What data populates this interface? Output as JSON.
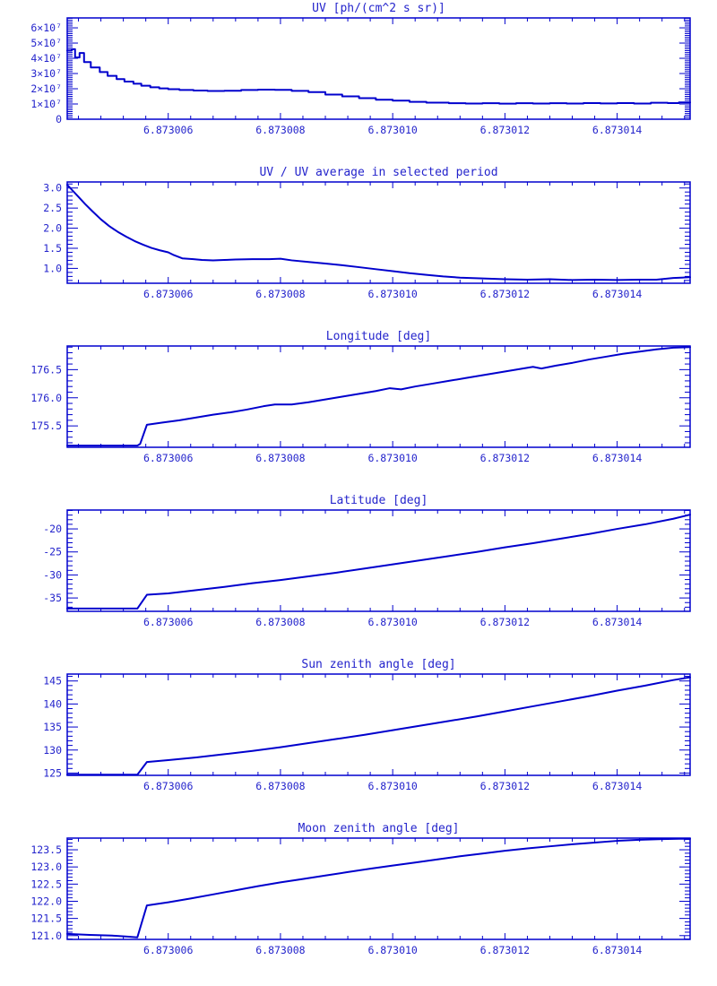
{
  "page": {
    "background": "#ffffff"
  },
  "style": {
    "line_color": "#0000CD",
    "frame_color": "#0000CD",
    "text_color": "#2424CC"
  },
  "chart_data": [
    {
      "type": "line",
      "title": "UV [ph/(cm^2 s sr)]",
      "line_mode": "step",
      "x_note": "point x = (axis label value - 6.873000) in units of 1e-6",
      "x_range": [
        4.2,
        15.3
      ],
      "x_ticks": [
        {
          "v": 6,
          "label": "6.873006"
        },
        {
          "v": 8,
          "label": "6.873008"
        },
        {
          "v": 10,
          "label": "6.873010"
        },
        {
          "v": 12,
          "label": "6.873012"
        },
        {
          "v": 14,
          "label": "6.873014"
        }
      ],
      "x_minor_step": 0.4,
      "y_note": "y values in units of 1e7 ph/(cm^2 s sr)",
      "y_range": [
        0,
        6.65
      ],
      "y_ticks": [
        {
          "v": 0,
          "label": "0"
        },
        {
          "v": 1,
          "label": "1×10⁷"
        },
        {
          "v": 2,
          "label": "2×10⁷"
        },
        {
          "v": 3,
          "label": "3×10⁷"
        },
        {
          "v": 4,
          "label": "4×10⁷"
        },
        {
          "v": 5,
          "label": "5×10⁷"
        },
        {
          "v": 6,
          "label": "6×10⁷"
        }
      ],
      "y_minor_step": 0.125,
      "points": [
        [
          4.2,
          4.5
        ],
        [
          4.28,
          4.6
        ],
        [
          4.34,
          4.05
        ],
        [
          4.42,
          4.35
        ],
        [
          4.5,
          3.75
        ],
        [
          4.62,
          3.4
        ],
        [
          4.78,
          3.1
        ],
        [
          4.92,
          2.85
        ],
        [
          5.08,
          2.63
        ],
        [
          5.22,
          2.47
        ],
        [
          5.38,
          2.33
        ],
        [
          5.52,
          2.2
        ],
        [
          5.68,
          2.1
        ],
        [
          5.84,
          2.02
        ],
        [
          6.0,
          1.97
        ],
        [
          6.2,
          1.92
        ],
        [
          6.45,
          1.88
        ],
        [
          6.7,
          1.85
        ],
        [
          7.0,
          1.87
        ],
        [
          7.3,
          1.92
        ],
        [
          7.6,
          1.94
        ],
        [
          7.9,
          1.93
        ],
        [
          8.2,
          1.86
        ],
        [
          8.5,
          1.78
        ],
        [
          8.8,
          1.62
        ],
        [
          9.1,
          1.5
        ],
        [
          9.4,
          1.38
        ],
        [
          9.7,
          1.28
        ],
        [
          10.0,
          1.22
        ],
        [
          10.3,
          1.14
        ],
        [
          10.6,
          1.09
        ],
        [
          11.0,
          1.05
        ],
        [
          11.3,
          1.03
        ],
        [
          11.6,
          1.05
        ],
        [
          11.9,
          1.02
        ],
        [
          12.2,
          1.05
        ],
        [
          12.5,
          1.03
        ],
        [
          12.8,
          1.05
        ],
        [
          13.1,
          1.03
        ],
        [
          13.4,
          1.06
        ],
        [
          13.7,
          1.04
        ],
        [
          14.0,
          1.06
        ],
        [
          14.3,
          1.03
        ],
        [
          14.6,
          1.08
        ],
        [
          14.9,
          1.06
        ],
        [
          15.1,
          1.1
        ],
        [
          15.3,
          1.1
        ]
      ]
    },
    {
      "type": "line",
      "title": "UV / UV average in selected period",
      "line_mode": "linear",
      "x_note": "point x = (axis label value - 6.873000) in units of 1e-6",
      "x_range": [
        4.2,
        15.3
      ],
      "x_ticks": [
        {
          "v": 6,
          "label": "6.873006"
        },
        {
          "v": 8,
          "label": "6.873008"
        },
        {
          "v": 10,
          "label": "6.873010"
        },
        {
          "v": 12,
          "label": "6.873012"
        },
        {
          "v": 14,
          "label": "6.873014"
        }
      ],
      "x_minor_step": 0.4,
      "y_range": [
        0.63,
        3.15
      ],
      "y_ticks": [
        {
          "v": 1.0,
          "label": "1.0"
        },
        {
          "v": 1.5,
          "label": "1.5"
        },
        {
          "v": 2.0,
          "label": "2.0"
        },
        {
          "v": 2.5,
          "label": "2.5"
        },
        {
          "v": 3.0,
          "label": "3.0"
        }
      ],
      "y_minor_step": 0.1,
      "points": [
        [
          4.2,
          3.08
        ],
        [
          4.3,
          2.93
        ],
        [
          4.4,
          2.78
        ],
        [
          4.52,
          2.6
        ],
        [
          4.65,
          2.42
        ],
        [
          4.8,
          2.22
        ],
        [
          4.95,
          2.05
        ],
        [
          5.1,
          1.91
        ],
        [
          5.25,
          1.79
        ],
        [
          5.4,
          1.68
        ],
        [
          5.55,
          1.59
        ],
        [
          5.7,
          1.51
        ],
        [
          5.85,
          1.45
        ],
        [
          6.0,
          1.4
        ],
        [
          6.1,
          1.33
        ],
        [
          6.25,
          1.25
        ],
        [
          6.45,
          1.23
        ],
        [
          6.6,
          1.21
        ],
        [
          6.8,
          1.2
        ],
        [
          7.0,
          1.21
        ],
        [
          7.2,
          1.22
        ],
        [
          7.5,
          1.23
        ],
        [
          7.8,
          1.23
        ],
        [
          8.0,
          1.24
        ],
        [
          8.2,
          1.2
        ],
        [
          8.5,
          1.16
        ],
        [
          8.8,
          1.12
        ],
        [
          9.1,
          1.08
        ],
        [
          9.4,
          1.03
        ],
        [
          9.7,
          0.98
        ],
        [
          10.0,
          0.93
        ],
        [
          10.3,
          0.88
        ],
        [
          10.6,
          0.84
        ],
        [
          10.9,
          0.8
        ],
        [
          11.2,
          0.77
        ],
        [
          11.6,
          0.75
        ],
        [
          12.0,
          0.73
        ],
        [
          12.4,
          0.72
        ],
        [
          12.8,
          0.73
        ],
        [
          13.2,
          0.71
        ],
        [
          13.6,
          0.72
        ],
        [
          14.0,
          0.71
        ],
        [
          14.4,
          0.72
        ],
        [
          14.7,
          0.72
        ],
        [
          15.0,
          0.76
        ],
        [
          15.3,
          0.78
        ]
      ]
    },
    {
      "type": "line",
      "title": "Longitude [deg]",
      "line_mode": "linear",
      "x_note": "point x = (axis label value - 6.873000) in units of 1e-6",
      "x_range": [
        4.2,
        15.3
      ],
      "x_ticks": [
        {
          "v": 6,
          "label": "6.873006"
        },
        {
          "v": 8,
          "label": "6.873008"
        },
        {
          "v": 10,
          "label": "6.873010"
        },
        {
          "v": 12,
          "label": "6.873012"
        },
        {
          "v": 14,
          "label": "6.873014"
        }
      ],
      "x_minor_step": 0.4,
      "y_range": [
        175.12,
        176.92
      ],
      "y_ticks": [
        {
          "v": 175.5,
          "label": "175.5"
        },
        {
          "v": 176.0,
          "label": "176.0"
        },
        {
          "v": 176.5,
          "label": "176.5"
        }
      ],
      "y_minor_step": 0.1,
      "points": [
        [
          4.2,
          175.15
        ],
        [
          5.45,
          175.15
        ],
        [
          5.5,
          175.18
        ],
        [
          5.62,
          175.52
        ],
        [
          5.9,
          175.56
        ],
        [
          6.2,
          175.6
        ],
        [
          6.5,
          175.65
        ],
        [
          6.8,
          175.7
        ],
        [
          7.1,
          175.74
        ],
        [
          7.4,
          175.79
        ],
        [
          7.7,
          175.85
        ],
        [
          7.9,
          175.88
        ],
        [
          8.2,
          175.88
        ],
        [
          8.5,
          175.92
        ],
        [
          8.8,
          175.97
        ],
        [
          9.1,
          176.02
        ],
        [
          9.4,
          176.07
        ],
        [
          9.7,
          176.12
        ],
        [
          9.95,
          176.17
        ],
        [
          10.15,
          176.15
        ],
        [
          10.4,
          176.2
        ],
        [
          10.7,
          176.25
        ],
        [
          11.0,
          176.3
        ],
        [
          11.3,
          176.35
        ],
        [
          11.6,
          176.4
        ],
        [
          11.9,
          176.45
        ],
        [
          12.2,
          176.5
        ],
        [
          12.5,
          176.55
        ],
        [
          12.65,
          176.52
        ],
        [
          12.9,
          176.57
        ],
        [
          13.2,
          176.62
        ],
        [
          13.5,
          176.68
        ],
        [
          13.8,
          176.73
        ],
        [
          14.1,
          176.78
        ],
        [
          14.4,
          176.82
        ],
        [
          14.7,
          176.86
        ],
        [
          15.0,
          176.89
        ],
        [
          15.3,
          176.9
        ]
      ]
    },
    {
      "type": "line",
      "title": "Latitude [deg]",
      "line_mode": "linear",
      "x_note": "point x = (axis label value - 6.873000) in units of 1e-6",
      "x_range": [
        4.2,
        15.3
      ],
      "x_ticks": [
        {
          "v": 6,
          "label": "6.873006"
        },
        {
          "v": 8,
          "label": "6.873008"
        },
        {
          "v": 10,
          "label": "6.873010"
        },
        {
          "v": 12,
          "label": "6.873012"
        },
        {
          "v": 14,
          "label": "6.873014"
        }
      ],
      "x_minor_step": 0.4,
      "y_range": [
        -37.9,
        -15.9
      ],
      "y_ticks": [
        {
          "v": -35,
          "label": "-35"
        },
        {
          "v": -30,
          "label": "-30"
        },
        {
          "v": -25,
          "label": "-25"
        },
        {
          "v": -20,
          "label": "-20"
        }
      ],
      "y_minor_step": 1,
      "points": [
        [
          4.2,
          -37.3
        ],
        [
          5.45,
          -37.3
        ],
        [
          5.62,
          -34.3
        ],
        [
          6.0,
          -34.0
        ],
        [
          6.5,
          -33.3
        ],
        [
          7.0,
          -32.6
        ],
        [
          7.5,
          -31.8
        ],
        [
          8.0,
          -31.1
        ],
        [
          8.5,
          -30.3
        ],
        [
          9.0,
          -29.5
        ],
        [
          9.5,
          -28.6
        ],
        [
          10.0,
          -27.7
        ],
        [
          10.5,
          -26.8
        ],
        [
          11.0,
          -25.9
        ],
        [
          11.5,
          -25.0
        ],
        [
          12.0,
          -24.0
        ],
        [
          12.5,
          -23.1
        ],
        [
          13.0,
          -22.1
        ],
        [
          13.5,
          -21.1
        ],
        [
          14.0,
          -20.0
        ],
        [
          14.5,
          -19.0
        ],
        [
          15.0,
          -17.8
        ],
        [
          15.3,
          -16.9
        ]
      ]
    },
    {
      "type": "line",
      "title": "Sun zenith angle [deg]",
      "line_mode": "linear",
      "x_note": "point x = (axis label value - 6.873000) in units of 1e-6",
      "x_range": [
        4.2,
        15.3
      ],
      "x_ticks": [
        {
          "v": 6,
          "label": "6.873006"
        },
        {
          "v": 8,
          "label": "6.873008"
        },
        {
          "v": 10,
          "label": "6.873010"
        },
        {
          "v": 12,
          "label": "6.873012"
        },
        {
          "v": 14,
          "label": "6.873014"
        }
      ],
      "x_minor_step": 0.4,
      "y_range": [
        124.5,
        146.5
      ],
      "y_ticks": [
        {
          "v": 125,
          "label": "125"
        },
        {
          "v": 130,
          "label": "130"
        },
        {
          "v": 135,
          "label": "135"
        },
        {
          "v": 140,
          "label": "140"
        },
        {
          "v": 145,
          "label": "145"
        }
      ],
      "y_minor_step": 1,
      "points": [
        [
          4.2,
          124.65
        ],
        [
          5.45,
          124.65
        ],
        [
          5.62,
          127.4
        ],
        [
          6.0,
          127.8
        ],
        [
          6.5,
          128.4
        ],
        [
          7.0,
          129.1
        ],
        [
          7.5,
          129.8
        ],
        [
          8.0,
          130.6
        ],
        [
          8.5,
          131.5
        ],
        [
          9.0,
          132.4
        ],
        [
          9.5,
          133.3
        ],
        [
          10.0,
          134.3
        ],
        [
          10.5,
          135.3
        ],
        [
          11.0,
          136.3
        ],
        [
          11.5,
          137.3
        ],
        [
          12.0,
          138.4
        ],
        [
          12.5,
          139.5
        ],
        [
          13.0,
          140.6
        ],
        [
          13.5,
          141.7
        ],
        [
          14.0,
          142.9
        ],
        [
          14.5,
          144.0
        ],
        [
          15.0,
          145.2
        ],
        [
          15.3,
          145.8
        ]
      ]
    },
    {
      "type": "line",
      "title": "Moon zenith angle [deg]",
      "line_mode": "linear",
      "x_note": "point x = (axis label value - 6.873000) in units of 1e-6",
      "x_range": [
        4.2,
        15.3
      ],
      "x_ticks": [
        {
          "v": 6,
          "label": "6.873006"
        },
        {
          "v": 8,
          "label": "6.873008"
        },
        {
          "v": 10,
          "label": "6.873010"
        },
        {
          "v": 12,
          "label": "6.873012"
        },
        {
          "v": 14,
          "label": "6.873014"
        }
      ],
      "x_minor_step": 0.4,
      "y_range": [
        120.89,
        123.84
      ],
      "y_ticks": [
        {
          "v": 121.0,
          "label": "121.0"
        },
        {
          "v": 121.5,
          "label": "121.5"
        },
        {
          "v": 122.0,
          "label": "122.0"
        },
        {
          "v": 122.5,
          "label": "122.5"
        },
        {
          "v": 123.0,
          "label": "123.0"
        },
        {
          "v": 123.5,
          "label": "123.5"
        }
      ],
      "y_minor_step": 0.1,
      "points": [
        [
          4.2,
          121.05
        ],
        [
          4.6,
          121.02
        ],
        [
          5.0,
          121.0
        ],
        [
          5.3,
          120.97
        ],
        [
          5.45,
          120.95
        ],
        [
          5.62,
          121.88
        ],
        [
          6.0,
          121.97
        ],
        [
          6.4,
          122.08
        ],
        [
          6.8,
          122.2
        ],
        [
          7.2,
          122.32
        ],
        [
          7.6,
          122.44
        ],
        [
          8.0,
          122.55
        ],
        [
          8.4,
          122.65
        ],
        [
          8.8,
          122.75
        ],
        [
          9.2,
          122.85
        ],
        [
          9.6,
          122.95
        ],
        [
          10.0,
          123.04
        ],
        [
          10.4,
          123.13
        ],
        [
          10.8,
          123.22
        ],
        [
          11.2,
          123.31
        ],
        [
          11.6,
          123.39
        ],
        [
          12.0,
          123.47
        ],
        [
          12.4,
          123.54
        ],
        [
          12.8,
          123.6
        ],
        [
          13.2,
          123.66
        ],
        [
          13.6,
          123.71
        ],
        [
          14.0,
          123.76
        ],
        [
          14.4,
          123.79
        ],
        [
          14.8,
          123.81
        ],
        [
          15.1,
          123.82
        ],
        [
          15.3,
          123.82
        ]
      ]
    }
  ]
}
